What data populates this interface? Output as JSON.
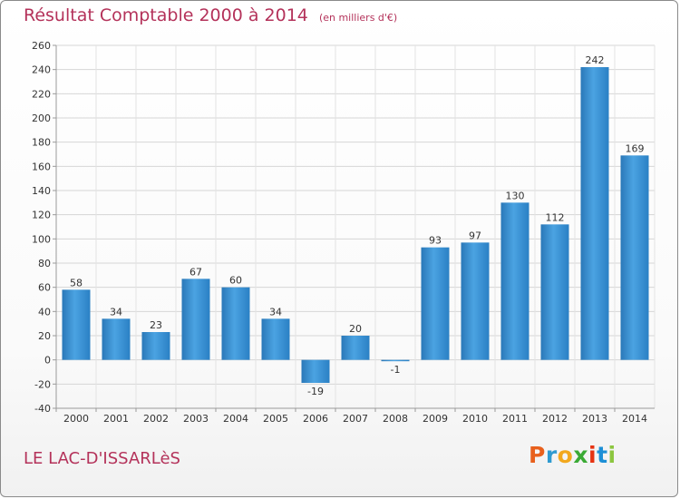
{
  "chart_data": {
    "type": "bar",
    "title": "Résultat Comptable 2000 à 2014",
    "subtitle": "(en milliers d'€)",
    "categories": [
      "2000",
      "2001",
      "2002",
      "2003",
      "2004",
      "2005",
      "2006",
      "2007",
      "2008",
      "2009",
      "2010",
      "2011",
      "2012",
      "2013",
      "2014"
    ],
    "values": [
      58,
      34,
      23,
      67,
      60,
      34,
      -19,
      20,
      -1,
      93,
      97,
      130,
      112,
      242,
      169
    ],
    "value_labels": [
      "58",
      "34",
      "23",
      "67",
      "60",
      "34",
      "-19",
      "20",
      "-1",
      "93",
      "97",
      "130",
      "112",
      "242",
      "169"
    ],
    "yticks": [
      "-40",
      "-20",
      "0",
      "20",
      "40",
      "60",
      "80",
      "100",
      "120",
      "140",
      "160",
      "180",
      "200",
      "220",
      "240",
      "260"
    ],
    "ylim": [
      -40,
      260
    ],
    "grid": true,
    "bar_color": "#3d8fd1"
  },
  "commune": "LE LAC-D'ISSARLèS",
  "logo": {
    "letters": [
      "P",
      "r",
      "o",
      "x",
      "i",
      "t",
      "i"
    ],
    "colors": [
      "#e8601c",
      "#2e9ad0",
      "#f2a81d",
      "#3aaa35",
      "#e63312",
      "#1d8fd6",
      "#8cc63f"
    ]
  }
}
